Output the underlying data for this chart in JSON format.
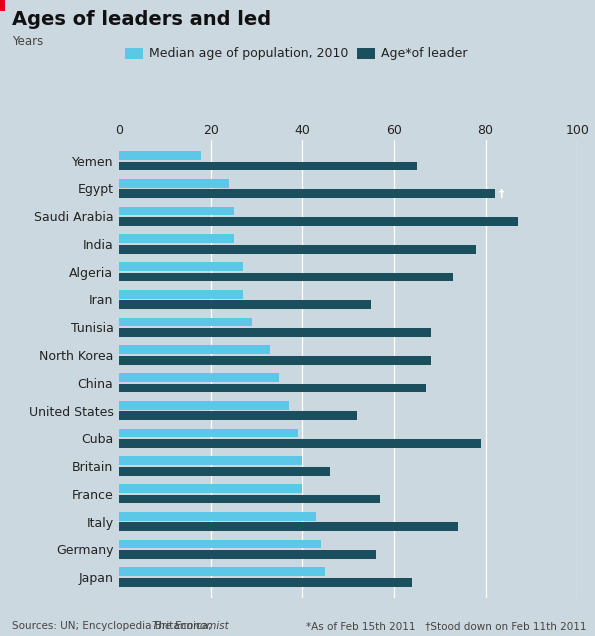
{
  "title": "Ages of leaders and led",
  "ylabel_text": "Years",
  "background_color": "#ccd8df",
  "bar_color_median": "#5bc8e8",
  "bar_color_leader": "#1b4f5e",
  "legend_median": "Median age of population, 2010",
  "legend_leader": "Age*of leader",
  "xlim": [
    0,
    100
  ],
  "xticks": [
    0,
    20,
    40,
    60,
    80,
    100
  ],
  "countries": [
    "Yemen",
    "Egypt",
    "Saudi Arabia",
    "India",
    "Algeria",
    "Iran",
    "Tunisia",
    "North Korea",
    "China",
    "United States",
    "Cuba",
    "Britain",
    "France",
    "Italy",
    "Germany",
    "Japan"
  ],
  "median_ages": [
    18,
    24,
    25,
    25,
    27,
    27,
    29,
    33,
    35,
    37,
    39,
    40,
    40,
    43,
    44,
    45
  ],
  "leader_ages": [
    65,
    82,
    87,
    78,
    73,
    55,
    68,
    68,
    67,
    52,
    79,
    46,
    57,
    74,
    56,
    64
  ],
  "title_fontsize": 14,
  "tick_fontsize": 9,
  "legend_fontsize": 9,
  "footnote_fontsize": 7.5
}
